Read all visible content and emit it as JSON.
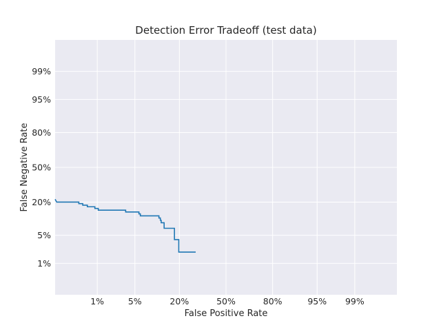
{
  "chart_data": {
    "type": "line",
    "title": "Detection Error Tradeoff (test data)",
    "xlabel": "False Positive Rate",
    "ylabel": "False Negative Rate",
    "scale": "normal-deviate (probit)",
    "xlim": [
      "0.1%",
      "99.9%"
    ],
    "ylim": [
      "0.1%",
      "99.9%"
    ],
    "x_ticks": [
      "1%",
      "5%",
      "20%",
      "50%",
      "80%",
      "95%",
      "99%"
    ],
    "y_ticks": [
      "1%",
      "5%",
      "20%",
      "50%",
      "80%",
      "95%",
      "99%"
    ],
    "grid": true,
    "series": [
      {
        "color": "#1f77b4",
        "points": [
          [
            0.001,
            0.22
          ],
          [
            0.0011,
            0.2
          ],
          [
            0.0039,
            0.2
          ],
          [
            0.0039,
            0.19
          ],
          [
            0.0048,
            0.19
          ],
          [
            0.0048,
            0.18
          ],
          [
            0.0061,
            0.18
          ],
          [
            0.0061,
            0.17
          ],
          [
            0.0089,
            0.17
          ],
          [
            0.0089,
            0.16
          ],
          [
            0.0105,
            0.16
          ],
          [
            0.0105,
            0.15
          ],
          [
            0.035,
            0.15
          ],
          [
            0.035,
            0.14
          ],
          [
            0.058,
            0.14
          ],
          [
            0.058,
            0.13
          ],
          [
            0.061,
            0.13
          ],
          [
            0.061,
            0.12
          ],
          [
            0.113,
            0.12
          ],
          [
            0.113,
            0.11
          ],
          [
            0.118,
            0.11
          ],
          [
            0.118,
            0.1
          ],
          [
            0.121,
            0.1
          ],
          [
            0.121,
            0.09
          ],
          [
            0.132,
            0.09
          ],
          [
            0.132,
            0.07
          ],
          [
            0.176,
            0.07
          ],
          [
            0.176,
            0.04
          ],
          [
            0.197,
            0.04
          ],
          [
            0.197,
            0.02
          ],
          [
            0.292,
            0.02
          ]
        ]
      }
    ]
  }
}
